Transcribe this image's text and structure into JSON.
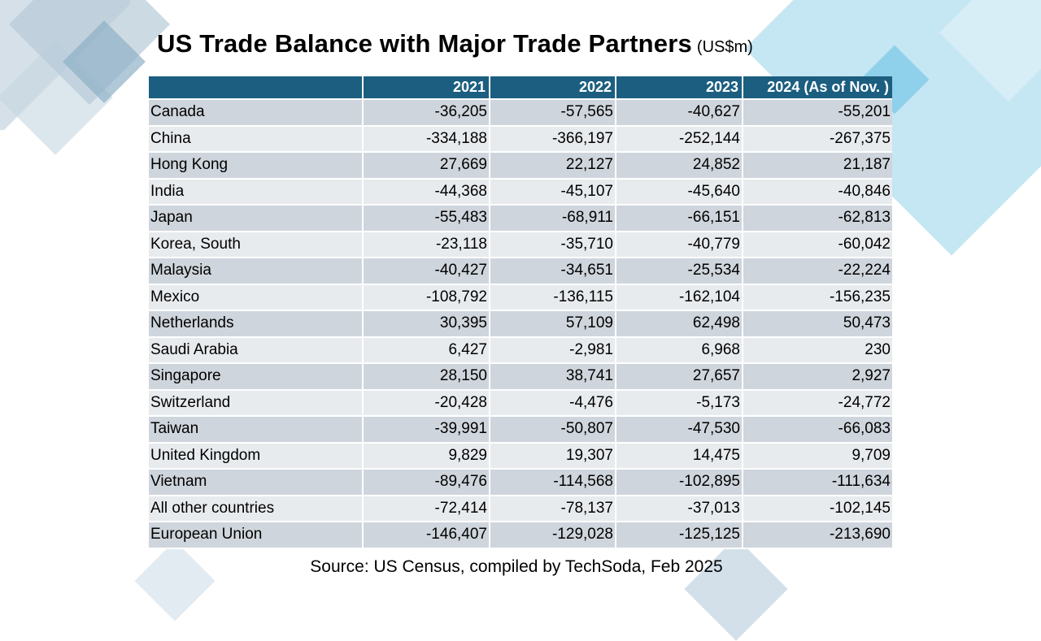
{
  "title": "US Trade Balance with Major Trade Partners",
  "unit": "(US$m)",
  "table": {
    "headers": [
      "",
      "2021",
      "2022",
      "2023",
      "2024 (As of Nov. )"
    ],
    "rows": [
      {
        "country": "Canada",
        "values": [
          "-36,205",
          "-57,565",
          "-40,627",
          "-55,201"
        ]
      },
      {
        "country": "China",
        "values": [
          "-334,188",
          "-366,197",
          "-252,144",
          "-267,375"
        ]
      },
      {
        "country": "Hong Kong",
        "values": [
          "27,669",
          "22,127",
          "24,852",
          "21,187"
        ]
      },
      {
        "country": "India",
        "values": [
          "-44,368",
          "-45,107",
          "-45,640",
          "-40,846"
        ]
      },
      {
        "country": "Japan",
        "values": [
          "-55,483",
          "-68,911",
          "-66,151",
          "-62,813"
        ]
      },
      {
        "country": "Korea, South",
        "values": [
          "-23,118",
          "-35,710",
          "-40,779",
          "-60,042"
        ]
      },
      {
        "country": "Malaysia",
        "values": [
          "-40,427",
          "-34,651",
          "-25,534",
          "-22,224"
        ]
      },
      {
        "country": "Mexico",
        "values": [
          "-108,792",
          "-136,115",
          "-162,104",
          "-156,235"
        ]
      },
      {
        "country": "Netherlands",
        "values": [
          "30,395",
          "57,109",
          "62,498",
          "50,473"
        ]
      },
      {
        "country": "Saudi Arabia",
        "values": [
          "6,427",
          "-2,981",
          "6,968",
          "230"
        ]
      },
      {
        "country": "Singapore",
        "values": [
          "28,150",
          "38,741",
          "27,657",
          "2,927"
        ]
      },
      {
        "country": "Switzerland",
        "values": [
          "-20,428",
          "-4,476",
          "-5,173",
          "-24,772"
        ]
      },
      {
        "country": "Taiwan",
        "values": [
          "-39,991",
          "-50,807",
          "-47,530",
          "-66,083"
        ]
      },
      {
        "country": "United Kingdom",
        "values": [
          "9,829",
          "19,307",
          "14,475",
          "9,709"
        ]
      },
      {
        "country": "Vietnam",
        "values": [
          "-89,476",
          "-114,568",
          "-102,895",
          "-111,634"
        ]
      },
      {
        "country": "All other countries",
        "values": [
          "-72,414",
          "-78,137",
          "-37,013",
          "-102,145"
        ]
      },
      {
        "country": "European Union",
        "values": [
          "-146,407",
          "-129,028",
          "-125,125",
          "-213,690"
        ]
      }
    ]
  },
  "source": "Source: US Census, compiled by TechSoda, Feb 2025",
  "colors": {
    "header_bg": "#1b5e80",
    "row_dark": "#cfd5dc",
    "row_light": "#e8ebee"
  }
}
